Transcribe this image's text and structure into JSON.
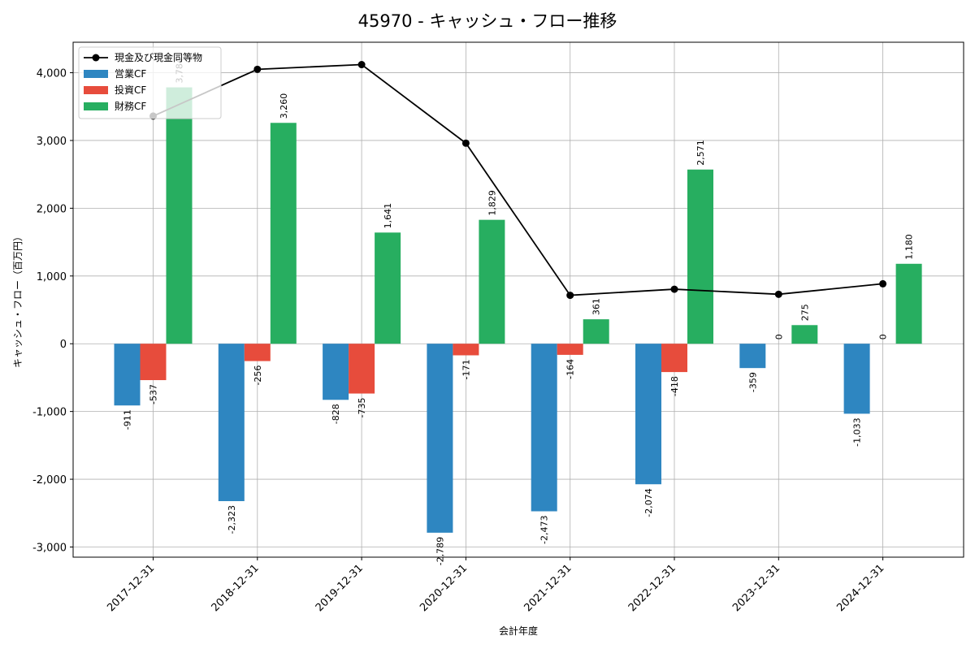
{
  "chart_data": {
    "type": "bar",
    "title": "45970 - キャッシュ・フロー推移",
    "xlabel": "会計年度",
    "ylabel": "キャッシュ・フロー（百万円）",
    "categories": [
      "2017-12-31",
      "2018-12-31",
      "2019-12-31",
      "2020-12-31",
      "2021-12-31",
      "2022-12-31",
      "2023-12-31",
      "2024-12-31"
    ],
    "ylim": [
      -3150,
      4450
    ],
    "yticks": [
      -3000,
      -2000,
      -1000,
      0,
      1000,
      2000,
      3000,
      4000
    ],
    "ytick_labels": [
      "-3,000",
      "-2,000",
      "-1,000",
      "0",
      "1,000",
      "2,000",
      "3,000",
      "4,000"
    ],
    "grid": true,
    "legend_position": "top-left",
    "series": [
      {
        "name": "営業CF",
        "type": "bar",
        "color": "#2e86c1",
        "values": [
          -911,
          -2323,
          -828,
          -2789,
          -2473,
          -2074,
          -359,
          -1033
        ],
        "labels": [
          "-911",
          "-2,323",
          "-828",
          "-2,789",
          "-2,473",
          "-2,074",
          "-359",
          "-1,033"
        ]
      },
      {
        "name": "投資CF",
        "type": "bar",
        "color": "#e74c3c",
        "values": [
          -537,
          -256,
          -735,
          -171,
          -164,
          -418,
          0,
          0
        ],
        "labels": [
          "-537",
          "-256",
          "-735",
          "-171",
          "-164",
          "-418",
          "0",
          "0"
        ]
      },
      {
        "name": "財務CF",
        "type": "bar",
        "color": "#27ae60",
        "values": [
          3784,
          3260,
          1641,
          1829,
          361,
          2571,
          275,
          1180
        ],
        "labels": [
          "3,784",
          "3,260",
          "1,641",
          "1,829",
          "361",
          "2,571",
          "275",
          "1,180"
        ]
      },
      {
        "name": "現金及び現金同等物",
        "type": "line",
        "color": "#000000",
        "values": [
          3360,
          4050,
          4120,
          2960,
          715,
          805,
          730,
          885
        ]
      }
    ]
  }
}
